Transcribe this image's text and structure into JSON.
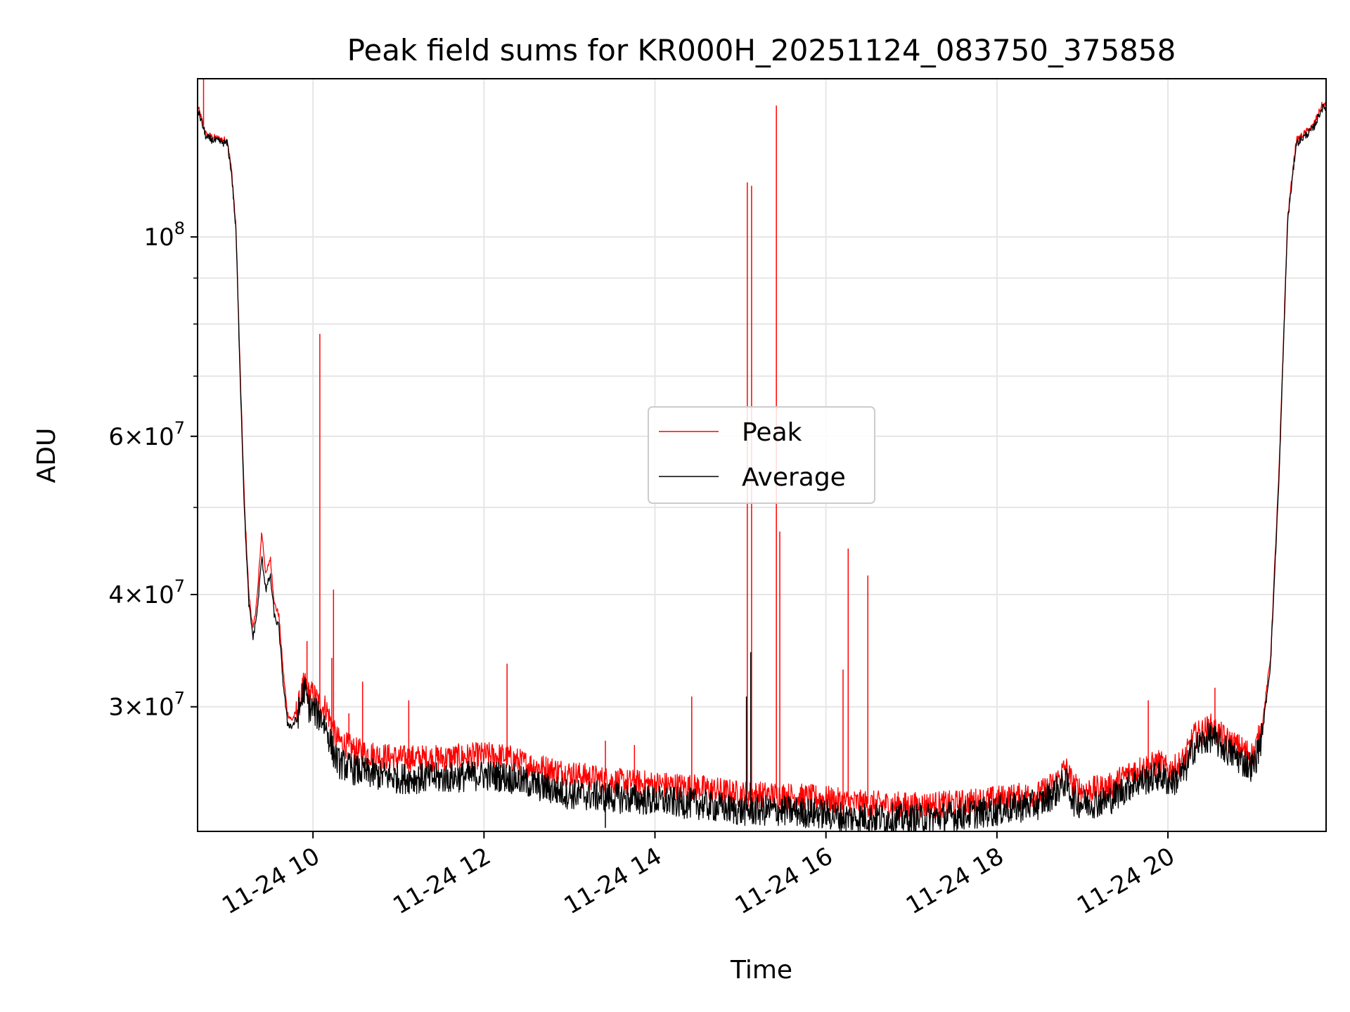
{
  "chart_data": {
    "type": "line",
    "title": "Peak field sums for KR000H_20251124_083750_375858",
    "xlabel": "Time",
    "ylabel": "ADU",
    "yscale": "log",
    "ylim": [
      21800000,
      150000000
    ],
    "xlim_hours": [
      8.65,
      21.85
    ],
    "x_ticks": [
      {
        "hour": 10,
        "label": "11-24 10"
      },
      {
        "hour": 12,
        "label": "11-24 12"
      },
      {
        "hour": 14,
        "label": "11-24 14"
      },
      {
        "hour": 16,
        "label": "11-24 16"
      },
      {
        "hour": 18,
        "label": "11-24 18"
      },
      {
        "hour": 20,
        "label": "11-24 20"
      }
    ],
    "y_major_ticks": [
      {
        "value": 30000000,
        "mantissa": "3",
        "exp": "7"
      },
      {
        "value": 40000000,
        "mantissa": "4",
        "exp": "7"
      },
      {
        "value": 60000000,
        "mantissa": "6",
        "exp": "7"
      },
      {
        "value": 100000000,
        "mantissa": "",
        "exp": "8"
      }
    ],
    "y_minor_ticks": [
      50000000,
      70000000,
      80000000,
      90000000
    ],
    "grid": true,
    "legend_position": "center",
    "series": [
      {
        "name": "Peak",
        "color": "#ff0000",
        "x": [
          8.65,
          8.75,
          8.85,
          9.0,
          9.05,
          9.1,
          9.15,
          9.2,
          9.25,
          9.3,
          9.35,
          9.4,
          9.45,
          9.5,
          9.55,
          9.6,
          9.65,
          9.7,
          9.75,
          9.8,
          9.85,
          9.9,
          9.95,
          10.0,
          10.05,
          10.1,
          10.15,
          10.2,
          10.25,
          10.3,
          10.5,
          10.75,
          11.0,
          11.5,
          12.0,
          12.25,
          12.5,
          13.0,
          13.5,
          14.0,
          14.5,
          15.0,
          15.5,
          16.0,
          16.2,
          16.5,
          17.0,
          17.5,
          18.0,
          18.5,
          18.7,
          18.8,
          18.9,
          19.0,
          19.3,
          19.6,
          19.8,
          19.9,
          20.0,
          20.1,
          20.2,
          20.3,
          20.5,
          20.7,
          20.9,
          21.0,
          21.1,
          21.2,
          21.3,
          21.4,
          21.5,
          21.7,
          21.8,
          21.85
        ],
        "values": [
          140000000,
          130000000,
          129000000,
          128000000,
          118000000,
          102000000,
          70000000,
          50000000,
          40000000,
          36500000,
          40000000,
          47000000,
          42000000,
          44000000,
          39000000,
          38000000,
          33000000,
          29500000,
          29000000,
          29500000,
          30500000,
          32000000,
          31000000,
          31000000,
          30500000,
          30000000,
          30000000,
          29000000,
          28000000,
          27500000,
          26800000,
          26500000,
          26300000,
          26300000,
          26500000,
          26400000,
          25900000,
          25300000,
          24800000,
          24600000,
          24400000,
          24000000,
          23900000,
          23700000,
          23500000,
          23400000,
          23300000,
          23400000,
          23700000,
          24000000,
          24800000,
          25700000,
          24500000,
          24200000,
          24400000,
          25500000,
          25800000,
          26000000,
          25500000,
          25700000,
          26300000,
          27800000,
          28500000,
          27500000,
          26800000,
          26500000,
          28500000,
          34000000,
          55000000,
          105000000,
          128000000,
          133000000,
          140000000,
          140500000
        ],
        "spikes": [
          {
            "x": 8.72,
            "y": 150000000
          },
          {
            "x": 9.93,
            "y": 35500000
          },
          {
            "x": 10.08,
            "y": 78000000
          },
          {
            "x": 10.22,
            "y": 34000000
          },
          {
            "x": 10.24,
            "y": 40500000
          },
          {
            "x": 10.58,
            "y": 32000000
          },
          {
            "x": 10.42,
            "y": 29500000
          },
          {
            "x": 11.12,
            "y": 30500000
          },
          {
            "x": 12.27,
            "y": 33500000
          },
          {
            "x": 13.42,
            "y": 27500000
          },
          {
            "x": 13.76,
            "y": 27200000
          },
          {
            "x": 14.43,
            "y": 30800000
          },
          {
            "x": 15.08,
            "y": 115000000
          },
          {
            "x": 15.13,
            "y": 114000000
          },
          {
            "x": 15.42,
            "y": 140000000
          },
          {
            "x": 15.46,
            "y": 47000000
          },
          {
            "x": 16.2,
            "y": 33000000
          },
          {
            "x": 16.26,
            "y": 45000000
          },
          {
            "x": 16.49,
            "y": 42000000
          },
          {
            "x": 19.77,
            "y": 30500000
          },
          {
            "x": 20.55,
            "y": 31500000
          }
        ]
      },
      {
        "name": "Average",
        "color": "#000000",
        "x": [
          8.65,
          8.75,
          8.85,
          9.0,
          9.05,
          9.1,
          9.15,
          9.2,
          9.25,
          9.3,
          9.35,
          9.4,
          9.45,
          9.5,
          9.55,
          9.6,
          9.65,
          9.7,
          9.75,
          9.8,
          9.85,
          9.9,
          9.95,
          10.0,
          10.05,
          10.1,
          10.15,
          10.2,
          10.25,
          10.3,
          10.5,
          10.75,
          11.0,
          11.5,
          12.0,
          12.25,
          12.5,
          13.0,
          13.5,
          14.0,
          14.5,
          15.0,
          15.5,
          16.0,
          16.2,
          16.5,
          17.0,
          17.5,
          18.0,
          18.5,
          18.7,
          18.8,
          18.9,
          19.0,
          19.3,
          19.6,
          19.8,
          19.9,
          20.0,
          20.1,
          20.2,
          20.3,
          20.5,
          20.7,
          20.9,
          21.0,
          21.1,
          21.2,
          21.3,
          21.4,
          21.5,
          21.7,
          21.8,
          21.85
        ],
        "values": [
          139000000,
          129000000,
          128000000,
          127000000,
          117000000,
          101000000,
          69000000,
          49000000,
          39000000,
          35800000,
          38500000,
          44000000,
          40500000,
          42000000,
          37800000,
          36800000,
          32000000,
          28800000,
          28500000,
          29000000,
          30000000,
          31500000,
          30000000,
          29800000,
          29400000,
          29200000,
          28500000,
          27500000,
          26500000,
          26000000,
          25500000,
          25200000,
          25000000,
          25000000,
          25200000,
          25100000,
          24700000,
          24000000,
          23800000,
          23600000,
          23400000,
          23000000,
          23000000,
          22800000,
          22600000,
          22600000,
          22500000,
          22700000,
          23000000,
          23400000,
          24200000,
          24800000,
          23600000,
          23400000,
          23600000,
          24700000,
          25000000,
          25200000,
          24800000,
          24900000,
          25500000,
          27000000,
          27800000,
          26800000,
          26000000,
          25700000,
          27800000,
          33500000,
          54000000,
          104000000,
          127000000,
          132000000,
          139000000,
          139500000
        ],
        "spikes": [
          {
            "x": 15.07,
            "y": 30800000
          },
          {
            "x": 15.12,
            "y": 34500000
          },
          {
            "x": 13.42,
            "y": 22000000
          }
        ]
      }
    ]
  }
}
